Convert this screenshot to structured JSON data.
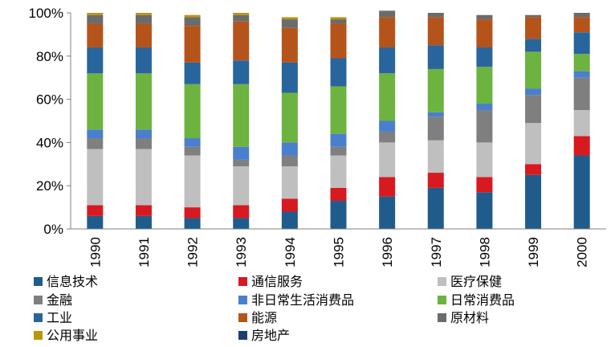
{
  "chart_data": {
    "type": "bar",
    "stacked": true,
    "normalized": true,
    "title": "",
    "xlabel": "",
    "ylabel": "",
    "ylim": [
      0,
      100
    ],
    "yticks": [
      "0%",
      "20%",
      "40%",
      "60%",
      "80%",
      "100%"
    ],
    "grid": false,
    "legend_position": "bottom",
    "categories": [
      "1990",
      "1991",
      "1992",
      "1993",
      "1994",
      "1995",
      "1996",
      "1997",
      "1998",
      "1999",
      "2000"
    ],
    "series": [
      {
        "name": "信息技术",
        "color": "#1F5C8C",
        "values": [
          6,
          6,
          5,
          5,
          8,
          13,
          15,
          19,
          17,
          25,
          34
        ]
      },
      {
        "name": "通信服务",
        "color": "#D71920",
        "values": [
          5,
          5,
          5,
          6,
          6,
          6,
          9,
          7,
          7,
          5,
          9
        ]
      },
      {
        "name": "医疗保健",
        "color": "#BFBFBF",
        "values": [
          26,
          26,
          24,
          18,
          15,
          15,
          16,
          15,
          16,
          19,
          12
        ]
      },
      {
        "name": "金融",
        "color": "#7F7F7F",
        "values": [
          5,
          5,
          4,
          3,
          5,
          4,
          5,
          11,
          15,
          13,
          15
        ]
      },
      {
        "name": "非日常生活消费品",
        "color": "#4A7FCF",
        "values": [
          4,
          4,
          4,
          6,
          6,
          6,
          5,
          2,
          3,
          3,
          3
        ]
      },
      {
        "name": "日常消费品",
        "color": "#6DB33F",
        "values": [
          26,
          26,
          25,
          29,
          23,
          22,
          22,
          20,
          17,
          17,
          8
        ]
      },
      {
        "name": "工业",
        "color": "#28659C",
        "values": [
          12,
          12,
          10,
          11,
          14,
          13,
          12,
          11,
          9,
          6,
          10
        ]
      },
      {
        "name": "能源",
        "color": "#B5541A",
        "values": [
          11,
          11,
          17,
          18,
          16,
          16,
          14,
          13,
          13,
          10,
          7
        ]
      },
      {
        "name": "原材料",
        "color": "#6B6B6B",
        "values": [
          4,
          4,
          4,
          3,
          4,
          2,
          3,
          2,
          2,
          1,
          2
        ]
      },
      {
        "name": "公用事业",
        "color": "#B8960E",
        "values": [
          1,
          1,
          1,
          1,
          1,
          1,
          0,
          0,
          0,
          0,
          0
        ]
      },
      {
        "name": "房地产",
        "color": "#1F3E6E",
        "values": [
          0,
          0,
          0,
          0,
          0,
          0,
          0,
          0,
          0,
          0,
          0
        ]
      }
    ]
  }
}
